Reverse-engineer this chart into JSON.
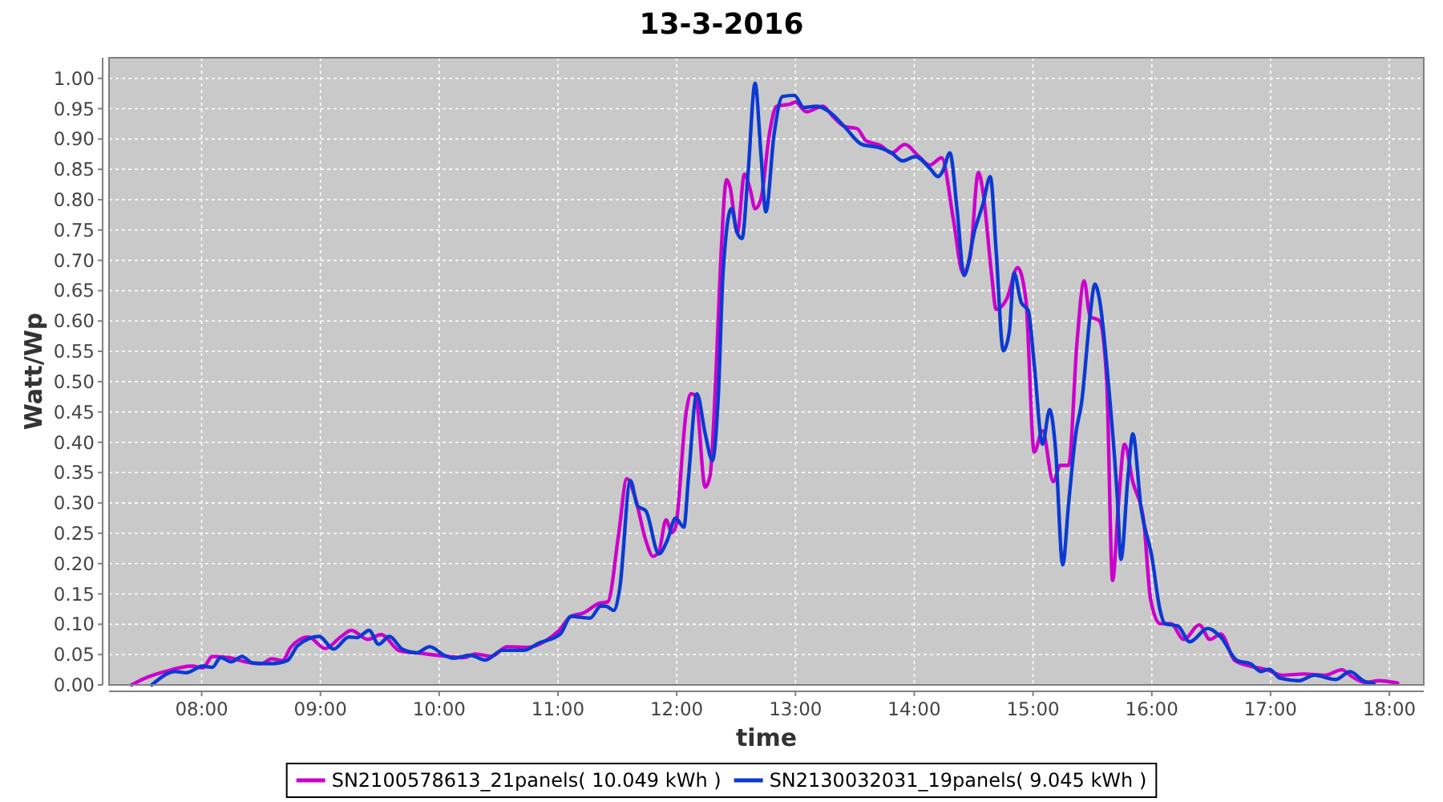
{
  "chart_data": {
    "type": "line",
    "title": "13-3-2016",
    "xlabel": "time",
    "ylabel": "Watt/Wp",
    "xlim": [
      7.22,
      18.29
    ],
    "xticks": [
      {
        "value": 8,
        "label": "08:00"
      },
      {
        "value": 9,
        "label": "09:00"
      },
      {
        "value": 10,
        "label": "10:00"
      },
      {
        "value": 11,
        "label": "11:00"
      },
      {
        "value": 12,
        "label": "12:00"
      },
      {
        "value": 13,
        "label": "13:00"
      },
      {
        "value": 14,
        "label": "14:00"
      },
      {
        "value": 15,
        "label": "15:00"
      },
      {
        "value": 16,
        "label": "16:00"
      },
      {
        "value": 17,
        "label": "17:00"
      },
      {
        "value": 18,
        "label": "18:00"
      }
    ],
    "ylim": [
      0,
      1.034
    ],
    "yticks": [
      {
        "value": 0,
        "label": "0.00"
      },
      {
        "value": 0.05,
        "label": "0.05"
      },
      {
        "value": 0.1,
        "label": "0.10"
      },
      {
        "value": 0.15,
        "label": "0.15"
      },
      {
        "value": 0.2,
        "label": "0.20"
      },
      {
        "value": 0.25,
        "label": "0.25"
      },
      {
        "value": 0.3,
        "label": "0.30"
      },
      {
        "value": 0.35,
        "label": "0.35"
      },
      {
        "value": 0.4,
        "label": "0.40"
      },
      {
        "value": 0.45,
        "label": "0.45"
      },
      {
        "value": 0.5,
        "label": "0.50"
      },
      {
        "value": 0.55,
        "label": "0.55"
      },
      {
        "value": 0.6,
        "label": "0.60"
      },
      {
        "value": 0.65,
        "label": "0.65"
      },
      {
        "value": 0.7,
        "label": "0.70"
      },
      {
        "value": 0.75,
        "label": "0.75"
      },
      {
        "value": 0.8,
        "label": "0.80"
      },
      {
        "value": 0.85,
        "label": "0.85"
      },
      {
        "value": 0.9,
        "label": "0.90"
      },
      {
        "value": 0.95,
        "label": "0.95"
      },
      {
        "value": 1,
        "label": "1.00"
      }
    ],
    "grid": true,
    "legend": "bottom",
    "series": [
      {
        "name": "SN2100578613_21panels( 10.049 kWh )",
        "color": "#cc00cc",
        "x": [
          7.41,
          7.51,
          7.69,
          7.92,
          8.01,
          8.09,
          8.23,
          8.37,
          8.5,
          8.59,
          8.68,
          8.75,
          8.9,
          9.04,
          9.17,
          9.26,
          9.4,
          9.51,
          9.67,
          9.85,
          10.03,
          10.21,
          10.3,
          10.44,
          10.57,
          10.75,
          10.89,
          11.0,
          11.11,
          11.22,
          11.34,
          11.42,
          11.51,
          11.58,
          11.65,
          11.74,
          11.8,
          11.85,
          11.91,
          11.96,
          11.99,
          12.08,
          12.12,
          12.16,
          12.24,
          12.28,
          12.33,
          12.37,
          12.42,
          12.45,
          12.51,
          12.57,
          12.62,
          12.66,
          12.71,
          12.78,
          12.84,
          12.96,
          13.0,
          13.09,
          13.23,
          13.32,
          13.41,
          13.52,
          13.59,
          13.72,
          13.81,
          13.92,
          14.04,
          14.13,
          14.23,
          14.33,
          14.41,
          14.47,
          14.54,
          14.58,
          14.65,
          14.69,
          14.78,
          14.87,
          14.94,
          15.01,
          15.08,
          15.17,
          15.23,
          15.3,
          15.37,
          15.43,
          15.48,
          15.56,
          15.62,
          15.67,
          15.72,
          15.77,
          15.84,
          15.93,
          15.99,
          16.07,
          16.16,
          16.27,
          16.4,
          16.49,
          16.58,
          16.7,
          16.83,
          16.97,
          17.1,
          17.28,
          17.46,
          17.6,
          17.69,
          17.8,
          17.91,
          18.07
        ],
        "values": [
          0,
          0.01,
          0.022,
          0.031,
          0.028,
          0.047,
          0.045,
          0.038,
          0.035,
          0.043,
          0.04,
          0.062,
          0.079,
          0.06,
          0.079,
          0.09,
          0.075,
          0.083,
          0.056,
          0.052,
          0.048,
          0.045,
          0.051,
          0.047,
          0.063,
          0.062,
          0.072,
          0.088,
          0.113,
          0.119,
          0.134,
          0.137,
          0.247,
          0.34,
          0.309,
          0.238,
          0.212,
          0.22,
          0.272,
          0.251,
          0.26,
          0.45,
          0.48,
          0.476,
          0.326,
          0.344,
          0.511,
          0.697,
          0.833,
          0.82,
          0.745,
          0.842,
          0.816,
          0.785,
          0.802,
          0.908,
          0.954,
          0.958,
          0.961,
          0.945,
          0.954,
          0.936,
          0.921,
          0.917,
          0.898,
          0.889,
          0.877,
          0.891,
          0.871,
          0.857,
          0.869,
          0.767,
          0.679,
          0.705,
          0.845,
          0.811,
          0.679,
          0.619,
          0.637,
          0.688,
          0.635,
          0.384,
          0.419,
          0.335,
          0.362,
          0.362,
          0.564,
          0.666,
          0.608,
          0.6,
          0.503,
          0.172,
          0.3,
          0.397,
          0.335,
          0.273,
          0.141,
          0.101,
          0.101,
          0.075,
          0.099,
          0.075,
          0.084,
          0.04,
          0.031,
          0.025,
          0.016,
          0.018,
          0.016,
          0.025,
          0.013,
          0.004,
          0.007,
          0.003
        ]
      },
      {
        "name": "SN2130032031_19panels( 9.045 kWh )",
        "color": "#0b3ad1",
        "x": [
          7.58,
          7.78,
          7.87,
          8.01,
          8.09,
          8.16,
          8.25,
          8.34,
          8.43,
          8.59,
          8.72,
          8.81,
          8.99,
          9.11,
          9.24,
          9.31,
          9.41,
          9.49,
          9.58,
          9.69,
          9.81,
          9.92,
          10.05,
          10.12,
          10.26,
          10.39,
          10.53,
          10.71,
          10.84,
          11.02,
          11.11,
          11.27,
          11.36,
          11.4,
          11.47,
          11.52,
          11.61,
          11.67,
          11.74,
          11.85,
          11.92,
          11.99,
          12.06,
          12.1,
          12.17,
          12.24,
          12.3,
          12.35,
          12.39,
          12.46,
          12.51,
          12.55,
          12.6,
          12.66,
          12.71,
          12.75,
          12.82,
          12.89,
          12.99,
          13.07,
          13.18,
          13.29,
          13.41,
          13.56,
          13.7,
          13.81,
          13.9,
          14.01,
          14.13,
          14.2,
          14.24,
          14.3,
          14.36,
          14.42,
          14.51,
          14.58,
          14.64,
          14.69,
          14.75,
          14.8,
          14.84,
          14.9,
          14.96,
          15.01,
          15.08,
          15.14,
          15.19,
          15.25,
          15.3,
          15.36,
          15.41,
          15.48,
          15.52,
          15.56,
          15.64,
          15.71,
          15.74,
          15.8,
          15.84,
          15.91,
          16.0,
          16.07,
          16.11,
          16.22,
          16.32,
          16.47,
          16.58,
          16.72,
          16.83,
          16.92,
          16.99,
          17.08,
          17.24,
          17.37,
          17.55,
          17.67,
          17.78,
          17.87
        ],
        "values": [
          0,
          0.022,
          0.02,
          0.031,
          0.029,
          0.045,
          0.038,
          0.047,
          0.036,
          0.035,
          0.04,
          0.065,
          0.08,
          0.059,
          0.079,
          0.078,
          0.09,
          0.067,
          0.08,
          0.059,
          0.053,
          0.063,
          0.048,
          0.044,
          0.049,
          0.041,
          0.057,
          0.057,
          0.069,
          0.084,
          0.113,
          0.11,
          0.13,
          0.13,
          0.123,
          0.159,
          0.337,
          0.295,
          0.287,
          0.216,
          0.238,
          0.275,
          0.26,
          0.344,
          0.48,
          0.414,
          0.37,
          0.476,
          0.679,
          0.785,
          0.745,
          0.736,
          0.842,
          0.992,
          0.873,
          0.78,
          0.908,
          0.97,
          0.972,
          0.952,
          0.954,
          0.944,
          0.921,
          0.891,
          0.886,
          0.877,
          0.864,
          0.871,
          0.852,
          0.838,
          0.847,
          0.877,
          0.785,
          0.675,
          0.75,
          0.794,
          0.838,
          0.714,
          0.551,
          0.582,
          0.679,
          0.631,
          0.617,
          0.529,
          0.397,
          0.454,
          0.388,
          0.198,
          0.3,
          0.414,
          0.467,
          0.608,
          0.661,
          0.635,
          0.485,
          0.309,
          0.207,
          0.344,
          0.414,
          0.291,
          0.212,
          0.123,
          0.101,
          0.097,
          0.071,
          0.093,
          0.079,
          0.04,
          0.035,
          0.022,
          0.026,
          0.011,
          0.007,
          0.016,
          0.009,
          0.022,
          0.007,
          0.002
        ]
      }
    ]
  }
}
